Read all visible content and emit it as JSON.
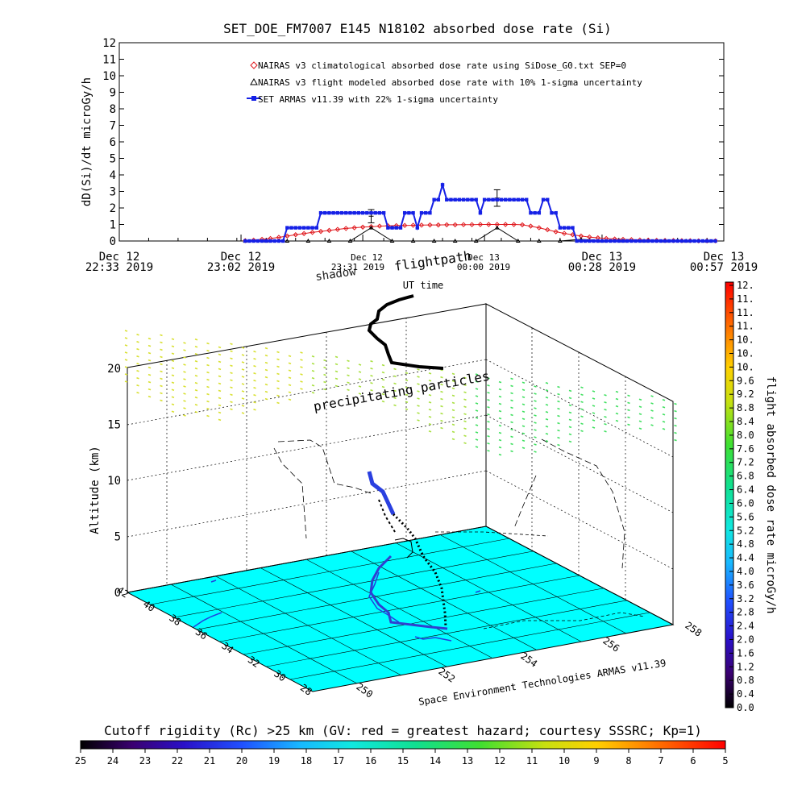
{
  "title": "SET_DOE_FM7007   E145 N18102 absorbed dose rate (Si)",
  "chart_data": [
    {
      "type": "line",
      "ylabel": "dD(Si)/dt microGy/h",
      "ylim": [
        0,
        12
      ],
      "yticks": [
        "0",
        "1",
        "2",
        "3",
        "4",
        "5",
        "6",
        "7",
        "8",
        "9",
        "10",
        "11",
        "12"
      ],
      "xlim": [
        0,
        144
      ],
      "xtick_minutes": [
        0,
        29,
        58,
        87,
        115,
        144
      ],
      "xticks": [
        {
          "line1": "Dec 12",
          "line2": "22:33 2019"
        },
        {
          "line1": "Dec 12",
          "line2": "23:02 2019"
        },
        {
          "line1": "Dec 12",
          "line2": "23:31 2019"
        },
        {
          "line1": "Dec 13",
          "line2": "00:00 2019"
        },
        {
          "line1": "Dec 13",
          "line2": "00:28 2019"
        },
        {
          "line1": "Dec 13",
          "line2": "00:57 2019"
        }
      ],
      "legend_position": "top-left",
      "series": [
        {
          "name": "NAIRAS v3 climatological absorbed dose rate using SiDose_G0.txt SEP=0",
          "color": "#e0191e",
          "marker": "diamond",
          "x": [
            30,
            32,
            34,
            36,
            38,
            40,
            42,
            44,
            46,
            48,
            50,
            52,
            54,
            56,
            58,
            60,
            62,
            64,
            66,
            68,
            70,
            72,
            74,
            76,
            78,
            80,
            82,
            84,
            86,
            88,
            90,
            92,
            94,
            96,
            98,
            100,
            102,
            104,
            106,
            108,
            110,
            112,
            114,
            116,
            118,
            120,
            122,
            124,
            126,
            128,
            130,
            132,
            134,
            136,
            138,
            140,
            142
          ],
          "values": [
            0.02,
            0.05,
            0.1,
            0.15,
            0.22,
            0.3,
            0.38,
            0.45,
            0.52,
            0.58,
            0.64,
            0.7,
            0.76,
            0.8,
            0.84,
            0.87,
            0.9,
            0.92,
            0.93,
            0.94,
            0.95,
            0.96,
            0.97,
            0.97,
            0.98,
            0.98,
            0.99,
            0.99,
            1.0,
            1.0,
            1.0,
            1.0,
            1.0,
            0.98,
            0.9,
            0.8,
            0.68,
            0.56,
            0.46,
            0.38,
            0.3,
            0.24,
            0.19,
            0.15,
            0.12,
            0.1,
            0.08,
            0.06,
            0.05,
            0.04,
            0.03,
            0.03,
            0.02,
            0.02,
            0.01,
            0.01,
            0.01
          ]
        },
        {
          "name": "NAIRAS v3 flight modeled absorbed dose rate with 10% 1-sigma uncertainty",
          "color": "#000000",
          "marker": "triangle",
          "x": [
            30,
            35,
            40,
            45,
            50,
            55,
            60,
            65,
            70,
            75,
            80,
            85,
            90,
            95,
            100,
            105,
            110,
            115,
            120,
            125,
            130,
            135,
            140
          ],
          "values": [
            0,
            0,
            0,
            0,
            0,
            0,
            0.8,
            0,
            0,
            0,
            0,
            0,
            0.8,
            0,
            0,
            0,
            0.1,
            0,
            0,
            0,
            0,
            0,
            0
          ],
          "error_bars": [
            {
              "x": 60,
              "y": 1.5,
              "err": 0.4
            },
            {
              "x": 90,
              "y": 2.6,
              "err": 0.5
            }
          ]
        },
        {
          "name": "SET ARMAS v11.39 with 22% 1-sigma uncertainty",
          "color": "#1520e6",
          "marker": "square",
          "x": [
            30,
            31,
            32,
            33,
            34,
            35,
            36,
            37,
            38,
            39,
            40,
            41,
            42,
            43,
            44,
            45,
            46,
            47,
            48,
            49,
            50,
            51,
            52,
            53,
            54,
            55,
            56,
            57,
            58,
            59,
            60,
            61,
            62,
            63,
            64,
            65,
            66,
            67,
            68,
            69,
            70,
            71,
            72,
            73,
            74,
            75,
            76,
            77,
            78,
            79,
            80,
            81,
            82,
            83,
            84,
            85,
            86,
            87,
            88,
            89,
            90,
            91,
            92,
            93,
            94,
            95,
            96,
            97,
            98,
            99,
            100,
            101,
            102,
            103,
            104,
            105,
            106,
            107,
            108,
            109,
            110,
            111,
            112,
            113,
            114,
            115,
            116,
            117,
            118,
            119,
            120,
            121,
            122,
            123,
            124,
            125,
            126,
            127,
            128,
            129,
            130,
            131,
            132,
            133,
            134,
            135,
            136,
            137,
            138,
            139,
            140,
            141,
            142
          ],
          "values": [
            0,
            0,
            0,
            0,
            0,
            0,
            0,
            0,
            0,
            0,
            0.8,
            0.8,
            0.8,
            0.8,
            0.8,
            0.8,
            0.8,
            0.8,
            1.7,
            1.7,
            1.7,
            1.7,
            1.7,
            1.7,
            1.7,
            1.7,
            1.7,
            1.7,
            1.7,
            1.7,
            1.7,
            1.7,
            1.7,
            1.7,
            0.8,
            0.8,
            0.8,
            0.8,
            1.7,
            1.7,
            1.7,
            0.8,
            1.7,
            1.7,
            1.7,
            2.5,
            2.5,
            3.4,
            2.5,
            2.5,
            2.5,
            2.5,
            2.5,
            2.5,
            2.5,
            2.5,
            1.7,
            2.5,
            2.5,
            2.5,
            2.5,
            2.5,
            2.5,
            2.5,
            2.5,
            2.5,
            2.5,
            2.5,
            1.7,
            1.7,
            1.7,
            2.5,
            2.5,
            1.7,
            1.7,
            0.8,
            0.8,
            0.8,
            0.8,
            0,
            0,
            0,
            0,
            0,
            0,
            0,
            0,
            0,
            0,
            0,
            0,
            0,
            0,
            0,
            0,
            0,
            0,
            0,
            0,
            0,
            0,
            0,
            0,
            0,
            0,
            0,
            0,
            0,
            0,
            0,
            0,
            0,
            0
          ]
        }
      ]
    },
    {
      "type": "scatter",
      "title": "flightpath",
      "annotations": [
        "shadow",
        "UT time",
        "precipitating particles"
      ],
      "overlap_ticks": [
        "Dec 12",
        "23:31 2019",
        "Dec 13",
        "00:00 2019"
      ],
      "zlabel": "Altitude (km)",
      "zlim": [
        0,
        20
      ],
      "zticks": [
        "0",
        "5",
        "10",
        "15",
        "20"
      ],
      "ylim_deg": [
        28,
        42
      ],
      "yticks": [
        "42",
        "40",
        "38",
        "36",
        "34",
        "32",
        "30",
        "28"
      ],
      "xlim_deg": [
        248,
        256
      ],
      "xticks": [
        "250",
        "252",
        "254",
        "256",
        "258"
      ],
      "credit": "Space Environment Technologies ARMAS v11.39"
    },
    {
      "type": "heatmap",
      "label": "flight absorbed dose rate microGy/h",
      "range": [
        0,
        12
      ],
      "ticks": [
        "12.",
        "11.",
        "11.",
        "11.",
        "10.",
        "10.",
        "10.",
        "9.6",
        "9.2",
        "8.8",
        "8.4",
        "8.0",
        "7.6",
        "7.2",
        "6.8",
        "6.4",
        "6.0",
        "5.6",
        "5.2",
        "4.8",
        "4.4",
        "4.0",
        "3.6",
        "3.2",
        "2.8",
        "2.4",
        "2.0",
        "1.6",
        "1.2",
        "0.8",
        "0.4",
        "0.0"
      ]
    },
    {
      "type": "heatmap",
      "label": "Cutoff rigidity (Rc) >25 km (GV: red = greatest hazard; courtesy SSSRC; Kp=1)",
      "range": [
        25,
        5
      ],
      "ticks": [
        "25",
        "24",
        "23",
        "22",
        "21",
        "20",
        "19",
        "18",
        "17",
        "16",
        "15",
        "14",
        "13",
        "12",
        "11",
        "10",
        "9",
        "8",
        "7",
        "6",
        "5"
      ]
    }
  ]
}
